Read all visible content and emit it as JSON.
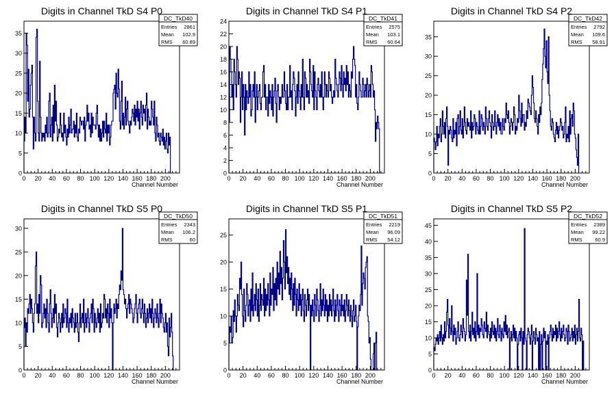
{
  "chart_data": [
    {
      "type": "histogram",
      "title": "Digits in Channel TkD S4 P0",
      "xlabel": "Channel Number",
      "ylabel": "",
      "xlim": [
        0,
        220
      ],
      "ylim": [
        0,
        38
      ],
      "xticks": [
        0,
        20,
        40,
        60,
        80,
        100,
        120,
        140,
        160,
        180,
        200
      ],
      "yticks": [
        0,
        5,
        10,
        15,
        20,
        25,
        30,
        35
      ],
      "stats": {
        "name": "DC_TkD40",
        "entries": "2861",
        "mean": "102.9",
        "rms": "60.89"
      },
      "values": [
        8,
        14,
        10,
        35,
        32,
        18,
        26,
        14,
        16,
        22,
        25,
        27,
        14,
        6,
        14,
        10,
        8,
        34,
        36,
        18,
        10,
        8,
        28,
        14,
        10,
        8,
        10,
        9,
        10,
        8,
        12,
        10,
        14,
        9,
        10,
        18,
        20,
        9,
        12,
        14,
        8,
        17,
        10,
        22,
        13,
        18,
        12,
        8,
        9,
        11,
        10,
        15,
        12,
        9,
        10,
        8,
        15,
        10,
        12,
        9,
        7,
        11,
        9,
        14,
        10,
        12,
        16,
        10,
        11,
        11,
        13,
        9,
        12,
        10,
        15,
        9,
        8,
        11,
        10,
        14,
        13,
        12,
        13,
        13,
        11,
        14,
        8,
        12,
        13,
        17,
        13,
        15,
        11,
        12,
        9,
        15,
        10,
        14,
        12,
        12,
        12,
        11,
        15,
        17,
        12,
        9,
        12,
        8,
        11,
        8,
        10,
        13,
        9,
        13,
        11,
        10,
        15,
        8,
        12,
        10,
        12,
        7,
        9,
        12,
        13,
        13,
        20,
        21,
        22,
        16,
        25,
        20,
        19,
        26,
        21,
        13,
        11,
        18,
        23,
        12,
        15,
        11,
        14,
        19,
        12,
        16,
        18,
        13,
        12,
        10,
        13,
        12,
        14,
        16,
        15,
        13,
        17,
        12,
        16,
        14,
        18,
        13,
        16,
        11,
        15,
        18,
        14,
        12,
        17,
        15,
        16,
        13,
        17,
        20,
        11,
        16,
        14,
        12,
        13,
        12,
        18,
        16,
        14,
        12,
        18,
        10,
        8,
        14,
        12,
        9,
        10,
        8,
        7,
        10,
        9,
        8,
        11,
        7,
        9,
        6,
        8,
        10,
        6,
        5,
        10,
        7,
        9
      ]
    },
    {
      "type": "histogram",
      "title": "Digits in Channel TkD S4 P1",
      "xlabel": "Channel Number",
      "ylabel": "",
      "xlim": [
        0,
        220
      ],
      "ylim": [
        0,
        24
      ],
      "xticks": [
        0,
        20,
        40,
        60,
        80,
        100,
        120,
        140,
        160,
        180,
        200
      ],
      "yticks": [
        0,
        2,
        4,
        6,
        8,
        10,
        12,
        14,
        16,
        18,
        20,
        22,
        24
      ],
      "stats": {
        "name": "DC_TkD41",
        "entries": "2575",
        "mean": "103.1",
        "rms": "60.64"
      },
      "values": [
        8,
        20,
        18,
        16,
        12,
        14,
        10,
        18,
        16,
        14,
        12,
        20,
        18,
        14,
        16,
        15,
        8,
        12,
        16,
        10,
        14,
        12,
        6,
        14,
        10,
        13,
        12,
        11,
        16,
        12,
        14,
        9,
        10,
        13,
        14,
        12,
        16,
        8,
        12,
        14,
        10,
        12,
        13,
        14,
        11,
        10,
        12,
        12,
        16,
        17,
        12,
        14,
        10,
        12,
        12,
        9,
        14,
        11,
        13,
        12,
        10,
        14,
        9,
        12,
        13,
        15,
        11,
        8,
        13,
        14,
        12,
        10,
        12,
        11,
        12,
        14,
        12,
        12,
        16,
        13,
        11,
        10,
        14,
        10,
        12,
        12,
        17,
        12,
        13,
        10,
        14,
        16,
        15,
        13,
        9,
        12,
        14,
        11,
        16,
        13,
        12,
        10,
        14,
        12,
        18,
        12,
        10,
        16,
        15,
        12,
        14,
        12,
        13,
        11,
        18,
        16,
        14,
        13,
        12,
        17,
        10,
        16,
        13,
        12,
        10,
        14,
        15,
        13,
        12,
        14,
        12,
        16,
        12,
        10,
        12,
        16,
        14,
        12,
        14,
        13,
        12,
        16,
        15,
        13,
        14,
        12,
        11,
        12,
        13,
        12,
        18,
        15,
        14,
        13,
        12,
        14,
        16,
        15,
        13,
        17,
        14,
        12,
        16,
        14,
        15,
        13,
        17,
        14,
        16,
        12,
        14,
        13,
        12,
        16,
        15,
        18,
        20,
        18,
        17,
        12,
        14,
        11,
        10,
        12,
        16,
        14,
        13,
        12,
        12,
        15,
        14,
        12,
        13,
        14,
        12,
        15,
        14,
        12,
        13,
        14,
        12,
        17,
        16,
        14,
        12,
        13,
        10,
        5,
        8,
        7,
        9,
        8,
        7
      ]
    },
    {
      "type": "histogram",
      "title": "Digits in Channel TkD S4 P2",
      "xlabel": "Channel Number",
      "ylabel": "",
      "xlim": [
        0,
        220
      ],
      "ylim": [
        0,
        39
      ],
      "xticks": [
        0,
        20,
        40,
        60,
        80,
        100,
        120,
        140,
        160,
        180,
        200
      ],
      "yticks": [
        0,
        5,
        10,
        15,
        20,
        25,
        30,
        35
      ],
      "stats": {
        "name": "DC_TkD42",
        "entries": "2792",
        "mean": "109.6",
        "rms": "58.91"
      },
      "values": [
        9,
        8,
        6,
        8,
        12,
        7,
        10,
        9,
        12,
        14,
        8,
        10,
        16,
        12,
        10,
        13,
        9,
        14,
        17,
        12,
        2,
        11,
        10,
        12,
        11,
        9,
        8,
        14,
        9,
        11,
        10,
        13,
        7,
        14,
        15,
        10,
        12,
        16,
        11,
        10,
        14,
        9,
        12,
        17,
        13,
        11,
        10,
        14,
        12,
        13,
        12,
        11,
        16,
        9,
        13,
        11,
        12,
        15,
        14,
        10,
        13,
        12,
        11,
        10,
        16,
        10,
        12,
        15,
        14,
        11,
        13,
        12,
        10,
        17,
        14,
        12,
        11,
        14,
        16,
        13,
        12,
        9,
        15,
        13,
        11,
        12,
        16,
        12,
        10,
        13,
        15,
        12,
        14,
        11,
        13,
        10,
        10,
        14,
        12,
        11,
        14,
        13,
        18,
        15,
        14,
        16,
        13,
        10,
        12,
        14,
        13,
        11,
        13,
        17,
        15,
        10,
        12,
        11,
        14,
        13,
        20,
        16,
        14,
        12,
        18,
        13,
        15,
        15,
        11,
        13,
        12,
        16,
        14,
        19,
        18,
        17,
        16,
        15,
        20,
        25,
        22,
        18,
        14,
        13,
        16,
        14,
        12,
        10,
        15,
        13,
        17,
        15,
        18,
        24,
        28,
        32,
        37,
        30,
        27,
        34,
        26,
        23,
        35,
        20,
        16,
        12,
        11,
        14,
        13,
        10,
        9,
        8,
        11,
        13,
        10,
        12,
        9,
        11,
        12,
        14,
        13,
        11,
        12,
        9,
        10,
        13,
        17,
        8,
        10,
        9,
        12,
        8,
        16,
        10,
        14,
        15,
        12,
        18,
        16,
        10,
        9,
        6,
        4,
        2,
        10
      ]
    },
    {
      "type": "histogram",
      "title": "Digits in Channel TkD S5 P0",
      "xlabel": "Channel Number",
      "ylabel": "",
      "xlim": [
        0,
        220
      ],
      "ylim": [
        0,
        32
      ],
      "xticks": [
        0,
        20,
        40,
        60,
        80,
        100,
        120,
        140,
        160,
        180,
        200
      ],
      "yticks": [
        0,
        5,
        10,
        15,
        20,
        25,
        30
      ],
      "stats": {
        "name": "DC_TkD50",
        "entries": "2343",
        "mean": "106.2",
        "rms": "60"
      },
      "values": [
        9,
        11,
        5,
        10,
        8,
        13,
        12,
        14,
        16,
        12,
        15,
        13,
        10,
        8,
        12,
        14,
        22,
        25,
        12,
        14,
        10,
        16,
        12,
        20,
        18,
        9,
        10,
        12,
        14,
        11,
        13,
        9,
        15,
        12,
        10,
        8,
        14,
        17,
        12,
        9,
        11,
        13,
        10,
        16,
        12,
        14,
        9,
        7,
        10,
        12,
        11,
        8,
        10,
        12,
        9,
        14,
        10,
        11,
        13,
        12,
        9,
        15,
        10,
        8,
        11,
        10,
        12,
        9,
        13,
        11,
        10,
        8,
        12,
        9,
        10,
        12,
        8,
        6,
        10,
        14,
        9,
        11,
        12,
        10,
        15,
        8,
        10,
        12,
        9,
        11,
        13,
        10,
        8,
        11,
        12,
        14,
        10,
        15,
        13,
        8,
        12,
        10,
        9,
        11,
        13,
        10,
        12,
        8,
        14,
        9,
        10,
        12,
        11,
        16,
        15,
        11,
        13,
        10,
        14,
        12,
        9,
        15,
        11,
        13,
        10,
        0,
        10,
        14,
        12,
        13,
        15,
        11,
        14,
        13,
        16,
        18,
        17,
        21,
        19,
        30,
        17,
        16,
        14,
        15,
        13,
        11,
        13,
        14,
        16,
        12,
        15,
        14,
        13,
        12,
        10,
        11,
        13,
        14,
        16,
        12,
        10,
        13,
        14,
        15,
        12,
        11,
        13,
        15,
        12,
        10,
        14,
        12,
        9,
        11,
        13,
        10,
        12,
        14,
        11,
        13,
        10,
        15,
        12,
        9,
        11,
        13,
        12,
        10,
        14,
        11,
        9,
        12,
        15,
        10,
        14,
        12,
        11,
        9,
        8,
        10,
        12,
        8,
        10,
        5,
        3,
        11,
        7,
        9,
        12,
        8,
        3
      ]
    },
    {
      "type": "histogram",
      "title": "Digits in Channel TkD S5 P1",
      "xlabel": "Channel Number",
      "ylabel": "",
      "xlim": [
        0,
        220
      ],
      "ylim": [
        0,
        28
      ],
      "xticks": [
        0,
        20,
        40,
        60,
        80,
        100,
        120,
        140,
        160,
        180,
        200
      ],
      "yticks": [
        0,
        5,
        10,
        15,
        20,
        25
      ],
      "stats": {
        "name": "DC_TkD51",
        "entries": "2219",
        "mean": "96.09",
        "rms": "54.12"
      },
      "values": [
        5,
        8,
        7,
        10,
        5,
        6,
        11,
        9,
        13,
        10,
        7,
        10,
        14,
        12,
        11,
        17,
        15,
        20,
        14,
        10,
        8,
        15,
        11,
        9,
        12,
        16,
        14,
        10,
        12,
        13,
        9,
        15,
        11,
        18,
        10,
        12,
        14,
        11,
        16,
        13,
        10,
        15,
        9,
        12,
        16,
        11,
        14,
        13,
        12,
        17,
        10,
        15,
        11,
        14,
        12,
        16,
        13,
        10,
        18,
        12,
        15,
        14,
        19,
        11,
        16,
        13,
        17,
        12,
        20,
        15,
        18,
        14,
        22,
        16,
        19,
        13,
        17,
        24,
        20,
        15,
        26,
        18,
        21,
        16,
        19,
        14,
        17,
        13,
        18,
        15,
        11,
        16,
        12,
        17,
        14,
        10,
        15,
        13,
        11,
        16,
        12,
        14,
        10,
        13,
        15,
        11,
        9,
        14,
        12,
        10,
        13,
        15,
        11,
        14,
        12,
        0,
        12,
        10,
        13,
        11,
        9,
        14,
        12,
        10,
        15,
        13,
        11,
        9,
        12,
        16,
        10,
        13,
        11,
        15,
        12,
        10,
        14,
        11,
        13,
        9,
        12,
        10,
        14,
        11,
        13,
        10,
        12,
        15,
        11,
        9,
        13,
        10,
        12,
        14,
        11,
        9,
        13,
        12,
        10,
        14,
        11,
        12,
        10,
        13,
        9,
        11,
        14,
        12,
        10,
        13,
        11,
        9,
        12,
        10,
        8,
        11,
        13,
        9,
        10,
        12,
        9,
        0,
        8,
        10,
        12,
        11,
        14,
        23,
        12,
        16,
        18,
        17,
        15,
        19,
        20,
        21,
        10,
        9,
        5,
        6,
        2,
        0,
        0,
        0,
        3,
        5,
        0,
        5,
        7,
        0,
        0
      ]
    },
    {
      "type": "histogram",
      "title": "Digits in Channel TkD S5 P2",
      "xlabel": "Channel Number",
      "ylabel": "",
      "xlim": [
        0,
        220
      ],
      "ylim": [
        0,
        47
      ],
      "xticks": [
        0,
        20,
        40,
        60,
        80,
        100,
        120,
        140,
        160,
        180,
        200
      ],
      "yticks": [
        0,
        5,
        10,
        15,
        20,
        25,
        30,
        35,
        40,
        45
      ],
      "stats": {
        "name": "DC_TkD52",
        "entries": "2389",
        "mean": "99.22",
        "rms": "60.9"
      },
      "values": [
        7,
        6,
        8,
        10,
        9,
        11,
        8,
        10,
        12,
        9,
        14,
        10,
        8,
        11,
        9,
        15,
        10,
        12,
        18,
        22,
        14,
        10,
        16,
        13,
        11,
        20,
        12,
        9,
        14,
        11,
        13,
        8,
        10,
        12,
        15,
        10,
        9,
        11,
        14,
        12,
        10,
        16,
        13,
        12,
        9,
        11,
        28,
        17,
        36,
        12,
        10,
        14,
        9,
        12,
        18,
        11,
        13,
        10,
        15,
        9,
        12,
        30,
        11,
        14,
        10,
        13,
        12,
        16,
        14,
        11,
        10,
        15,
        13,
        12,
        18,
        10,
        14,
        12,
        11,
        9,
        13,
        10,
        15,
        12,
        11,
        14,
        10,
        13,
        9,
        12,
        16,
        11,
        10,
        14,
        12,
        9,
        13,
        11,
        10,
        15,
        12,
        17,
        11,
        14,
        10,
        12,
        13,
        0,
        10,
        12,
        9,
        11,
        14,
        10,
        13,
        9,
        12,
        10,
        0,
        8,
        11,
        12,
        9,
        13,
        10,
        0,
        12,
        8,
        44,
        10,
        9,
        0,
        11,
        13,
        12,
        10,
        8,
        11,
        14,
        0,
        9,
        12,
        10,
        8,
        13,
        11,
        9,
        10,
        0,
        12,
        0,
        8,
        11,
        0,
        9,
        13,
        10,
        12,
        0,
        9,
        8,
        11,
        0,
        10,
        12,
        14,
        11,
        9,
        13,
        10,
        12,
        11,
        14,
        9,
        13,
        10,
        12,
        15,
        11,
        9,
        13,
        10,
        12,
        14,
        11,
        9,
        10,
        13,
        12,
        8,
        14,
        12,
        9,
        10,
        11,
        13,
        9,
        12,
        10,
        14,
        8,
        11,
        13,
        9,
        12,
        22,
        10,
        9,
        13,
        11,
        0,
        9
      ]
    }
  ]
}
